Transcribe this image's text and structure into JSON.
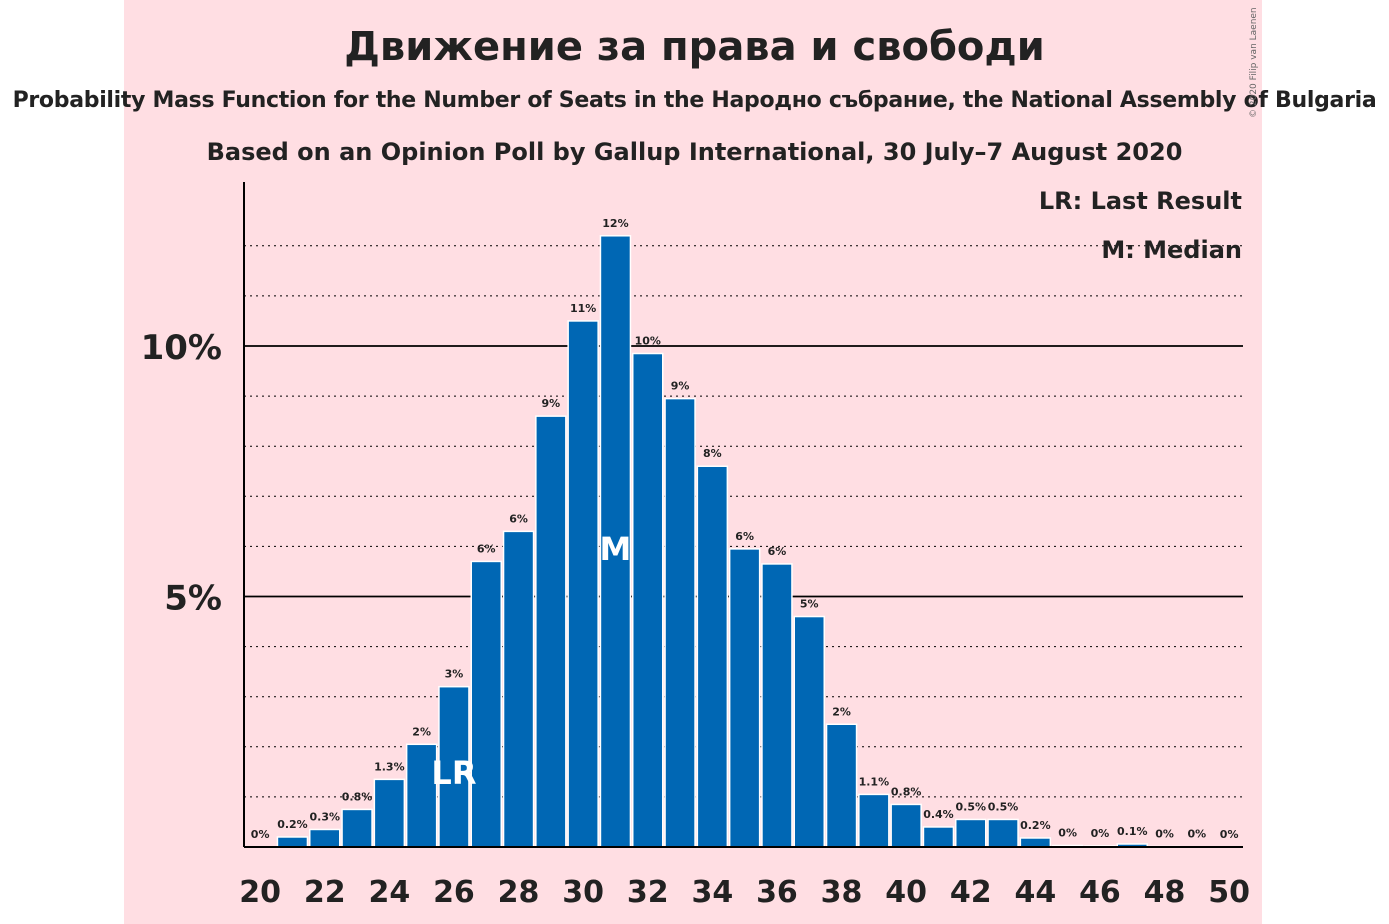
{
  "title": "Движение за права и свободи",
  "subtitle": "Probability Mass Function for the Number of Seats in the Народно събрание, the National Assembly of Bulgaria",
  "source": "Based on an Opinion Poll by Gallup International, 30 July–7 August 2020",
  "copyright": "© 2020 Filip van Laenen",
  "legend": {
    "last_result": "LR: Last Result",
    "median": "M: Median"
  },
  "colors": {
    "bar": "#0067b4",
    "background_band": "#ffdee3",
    "text": "#222222"
  },
  "chart_data": {
    "type": "bar",
    "xlabel": "",
    "ylabel": "",
    "xlim": [
      20,
      50
    ],
    "ylim": [
      0,
      13
    ],
    "y_ticks": [
      {
        "value": 5,
        "label": "5%"
      },
      {
        "value": 10,
        "label": "10%"
      }
    ],
    "x_tick_labels": [
      "20",
      "22",
      "24",
      "26",
      "28",
      "30",
      "32",
      "34",
      "36",
      "38",
      "40",
      "42",
      "44",
      "46",
      "48",
      "50"
    ],
    "grid": "dotted every 1%, solid at 5% and 10%",
    "legend_position": "top-right",
    "seats": [
      20,
      21,
      22,
      23,
      24,
      25,
      26,
      27,
      28,
      29,
      30,
      31,
      32,
      33,
      34,
      35,
      36,
      37,
      38,
      39,
      40,
      41,
      42,
      43,
      44,
      45,
      46,
      47,
      48,
      49,
      50
    ],
    "values": [
      0,
      0.2,
      0.35,
      0.75,
      1.35,
      2.05,
      3.2,
      5.7,
      6.3,
      8.6,
      10.5,
      12.2,
      9.85,
      8.95,
      7.6,
      5.95,
      5.65,
      4.6,
      2.45,
      1.05,
      0.85,
      0.4,
      0.55,
      0.55,
      0.18,
      0.03,
      0.02,
      0.06,
      0.01,
      0.005,
      0.003
    ],
    "labels": [
      "0%",
      "0.2%",
      "0.3%",
      "0.8%",
      "1.3%",
      "2%",
      "3%",
      "6%",
      "6%",
      "9%",
      "11%",
      "12%",
      "10%",
      "9%",
      "8%",
      "6%",
      "6%",
      "5%",
      "2%",
      "1.1%",
      "0.8%",
      "0.4%",
      "0.5%",
      "0.5%",
      "0.2%",
      "0%",
      "0%",
      "0.1%",
      "0%",
      "0%",
      "0%"
    ],
    "last_result": {
      "seat": 26,
      "marker": "LR"
    },
    "median": {
      "seat": 31,
      "marker": "M"
    }
  }
}
